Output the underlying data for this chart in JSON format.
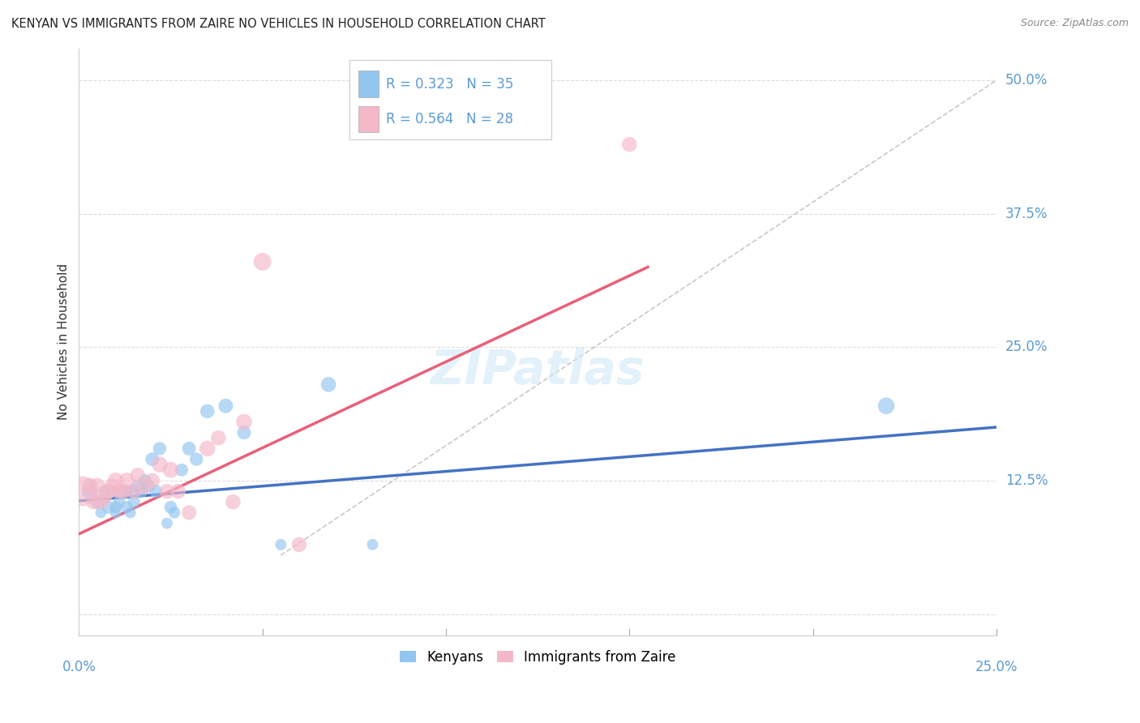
{
  "title": "KENYAN VS IMMIGRANTS FROM ZAIRE NO VEHICLES IN HOUSEHOLD CORRELATION CHART",
  "source": "Source: ZipAtlas.com",
  "ylabel": "No Vehicles in Household",
  "xlim": [
    0.0,
    0.25
  ],
  "ylim": [
    -0.02,
    0.53
  ],
  "yticks": [
    0.0,
    0.125,
    0.25,
    0.375,
    0.5
  ],
  "ytick_labels": [
    "",
    "12.5%",
    "25.0%",
    "37.5%",
    "50.0%"
  ],
  "xticks": [
    0.0,
    0.05,
    0.1,
    0.15,
    0.2,
    0.25
  ],
  "blue_color": "#92C5F0",
  "pink_color": "#F5B8C8",
  "blue_line_color": "#4472C4",
  "pink_line_color": "#E8607A",
  "diag_line_color": "#C8C8C8",
  "tick_label_color": "#5B9BD5",
  "background_color": "#FFFFFF",
  "kenyan_scatter_x": [
    0.003,
    0.005,
    0.006,
    0.007,
    0.008,
    0.009,
    0.01,
    0.01,
    0.011,
    0.012,
    0.013,
    0.013,
    0.014,
    0.015,
    0.015,
    0.016,
    0.017,
    0.018,
    0.019,
    0.02,
    0.021,
    0.022,
    0.024,
    0.025,
    0.026,
    0.028,
    0.03,
    0.032,
    0.035,
    0.04,
    0.045,
    0.055,
    0.068,
    0.08,
    0.22
  ],
  "kenyan_scatter_y": [
    0.115,
    0.105,
    0.095,
    0.115,
    0.1,
    0.115,
    0.095,
    0.1,
    0.105,
    0.115,
    0.1,
    0.115,
    0.095,
    0.115,
    0.105,
    0.12,
    0.115,
    0.125,
    0.12,
    0.145,
    0.115,
    0.155,
    0.085,
    0.1,
    0.095,
    0.135,
    0.155,
    0.145,
    0.19,
    0.195,
    0.17,
    0.065,
    0.215,
    0.065,
    0.195
  ],
  "kenyan_scatter_size": [
    200,
    150,
    100,
    120,
    130,
    120,
    100,
    120,
    120,
    130,
    120,
    130,
    100,
    130,
    120,
    130,
    130,
    130,
    130,
    150,
    130,
    140,
    100,
    130,
    110,
    130,
    150,
    140,
    160,
    170,
    150,
    100,
    180,
    100,
    220
  ],
  "zaire_scatter_x": [
    0.001,
    0.003,
    0.004,
    0.005,
    0.006,
    0.007,
    0.008,
    0.009,
    0.01,
    0.011,
    0.012,
    0.013,
    0.015,
    0.016,
    0.018,
    0.02,
    0.022,
    0.024,
    0.025,
    0.027,
    0.03,
    0.035,
    0.038,
    0.042,
    0.045,
    0.05,
    0.06,
    0.15
  ],
  "zaire_scatter_y": [
    0.115,
    0.12,
    0.105,
    0.12,
    0.105,
    0.11,
    0.115,
    0.12,
    0.125,
    0.115,
    0.115,
    0.125,
    0.115,
    0.13,
    0.12,
    0.125,
    0.14,
    0.115,
    0.135,
    0.115,
    0.095,
    0.155,
    0.165,
    0.105,
    0.18,
    0.33,
    0.065,
    0.44
  ],
  "zaire_scatter_size": [
    700,
    200,
    180,
    200,
    180,
    180,
    200,
    180,
    200,
    180,
    180,
    200,
    180,
    180,
    200,
    180,
    200,
    180,
    200,
    180,
    170,
    200,
    180,
    180,
    200,
    250,
    180,
    180
  ],
  "kenyan_line_x": [
    0.0,
    0.25
  ],
  "kenyan_line_y": [
    0.106,
    0.175
  ],
  "zaire_line_x": [
    0.0,
    0.155
  ],
  "zaire_line_y": [
    0.075,
    0.325
  ],
  "diag_line_x": [
    0.055,
    0.25
  ],
  "diag_line_y": [
    0.055,
    0.5
  ]
}
